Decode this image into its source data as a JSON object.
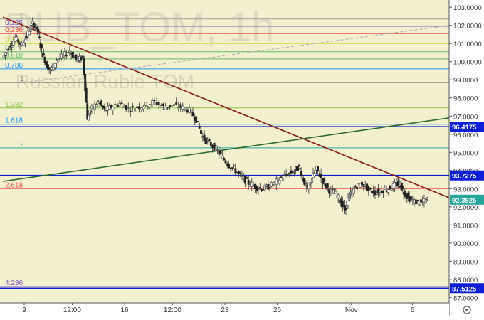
{
  "watermark": {
    "symbol": "RUB_TOM, 1h",
    "name": "Russian Ruble TOM"
  },
  "chart_data": {
    "type": "candlestick",
    "symbol": "RUB_TOM",
    "timeframe": "1h",
    "ylim": [
      86.7,
      103.4
    ],
    "y_ticks": [
      "103.0000",
      "102.0000",
      "101.0000",
      "100.0000",
      "99.0000",
      "98.0000",
      "97.0000",
      "96.0000",
      "95.0000",
      "94.0000",
      "93.0000",
      "92.0000",
      "91.0000",
      "90.0000",
      "89.0000",
      "88.0000",
      "87.0000"
    ],
    "x_labels": [
      {
        "label": "9",
        "x": 0.0
      },
      {
        "label": "12:00",
        "x": 0.11
      },
      {
        "label": "16",
        "x": 0.23
      },
      {
        "label": "12:00",
        "x": 0.34
      },
      {
        "label": "23",
        "x": 0.46
      },
      {
        "label": "26",
        "x": 0.58
      },
      {
        "label": "Nov",
        "x": 0.75
      },
      {
        "label": "6",
        "x": 0.89
      }
    ],
    "fib_levels": [
      {
        "label": "0",
        "value": 102.35,
        "color": "#9e9e9e"
      },
      {
        "label": "0.125",
        "value": 101.95,
        "color": "#7e57c2"
      },
      {
        "label": "0.236",
        "value": 101.55,
        "color": "#ef5350"
      },
      {
        "label": "0.382",
        "value": 101.0,
        "color": "#cddc39"
      },
      {
        "label": "0.5",
        "value": 100.55,
        "color": "#66bb6a"
      },
      {
        "label": "0.618",
        "value": 100.15,
        "color": "#66bb6a"
      },
      {
        "label": "0.786",
        "value": 99.6,
        "color": "#2196f3"
      },
      {
        "label": "1",
        "value": 98.85,
        "color": "#787878"
      },
      {
        "label": "1.382",
        "value": 97.45,
        "color": "#8bc34a"
      },
      {
        "label": "1.618",
        "value": 96.55,
        "color": "#2196f3"
      },
      {
        "label": "2",
        "value": 95.25,
        "color": "#26a69a"
      },
      {
        "label": "2.618",
        "value": 93.0,
        "color": "#ef5350"
      },
      {
        "label": "4.236",
        "value": 87.6,
        "color": "#7e57c2"
      }
    ],
    "price_levels": [
      {
        "value": 96.4175,
        "label": "96.4175",
        "color": "#0d1fd6"
      },
      {
        "value": 93.7275,
        "label": "93.7275",
        "color": "#0d1fd6"
      },
      {
        "value": 87.5125,
        "label": "87.5125",
        "color": "#0d1fd6"
      }
    ],
    "current_price": {
      "value": 92.3925,
      "label": "92.3925",
      "color": "#26a69a"
    },
    "trendlines": [
      {
        "name": "resistance",
        "color": "#8b1a1a",
        "from": {
          "x": 0.0,
          "y": 102.45
        },
        "to": {
          "x": 1.0,
          "y": 92.5
        }
      },
      {
        "name": "support",
        "color": "#2e6b2e",
        "from": {
          "x": 0.0,
          "y": 93.4
        },
        "to": {
          "x": 1.0,
          "y": 96.9
        }
      },
      {
        "name": "projection",
        "color": "#aaaaaa",
        "dashed": true,
        "from": {
          "x": 0.05,
          "y": 98.85
        },
        "to": {
          "x": 1.0,
          "y": 102.0
        }
      }
    ],
    "price_path": [
      [
        0.0,
        100.2
      ],
      [
        0.015,
        100.8
      ],
      [
        0.03,
        101.3
      ],
      [
        0.045,
        100.9
      ],
      [
        0.055,
        101.4
      ],
      [
        0.07,
        102.1
      ],
      [
        0.08,
        101.8
      ],
      [
        0.09,
        100.6
      ],
      [
        0.1,
        99.9
      ],
      [
        0.11,
        99.5
      ],
      [
        0.125,
        100.1
      ],
      [
        0.14,
        100.3
      ],
      [
        0.155,
        100.6
      ],
      [
        0.17,
        100.1
      ],
      [
        0.185,
        100.2
      ],
      [
        0.195,
        96.9
      ],
      [
        0.205,
        97.4
      ],
      [
        0.22,
        97.8
      ],
      [
        0.235,
        97.3
      ],
      [
        0.25,
        97.5
      ],
      [
        0.27,
        97.7
      ],
      [
        0.29,
        97.4
      ],
      [
        0.31,
        97.5
      ],
      [
        0.33,
        97.6
      ],
      [
        0.35,
        97.8
      ],
      [
        0.37,
        97.5
      ],
      [
        0.39,
        97.6
      ],
      [
        0.41,
        97.5
      ],
      [
        0.43,
        97.3
      ],
      [
        0.445,
        96.8
      ],
      [
        0.46,
        95.8
      ],
      [
        0.475,
        95.5
      ],
      [
        0.49,
        95.2
      ],
      [
        0.505,
        94.7
      ],
      [
        0.52,
        94.3
      ],
      [
        0.535,
        94.0
      ],
      [
        0.55,
        93.6
      ],
      [
        0.565,
        93.3
      ],
      [
        0.58,
        93.1
      ],
      [
        0.595,
        93.0
      ],
      [
        0.61,
        93.1
      ],
      [
        0.625,
        93.3
      ],
      [
        0.64,
        93.6
      ],
      [
        0.655,
        93.8
      ],
      [
        0.67,
        94.0
      ],
      [
        0.68,
        94.2
      ],
      [
        0.69,
        93.5
      ],
      [
        0.7,
        92.9
      ],
      [
        0.71,
        93.6
      ],
      [
        0.72,
        94.1
      ],
      [
        0.735,
        93.4
      ],
      [
        0.75,
        92.9
      ],
      [
        0.765,
        92.7
      ],
      [
        0.775,
        92.3
      ],
      [
        0.785,
        91.8
      ],
      [
        0.795,
        92.6
      ],
      [
        0.81,
        93.1
      ],
      [
        0.825,
        93.3
      ],
      [
        0.84,
        92.9
      ],
      [
        0.855,
        92.8
      ],
      [
        0.87,
        92.9
      ],
      [
        0.885,
        93.0
      ],
      [
        0.9,
        93.2
      ],
      [
        0.91,
        93.3
      ],
      [
        0.92,
        92.8
      ],
      [
        0.93,
        92.5
      ],
      [
        0.945,
        92.3
      ],
      [
        0.96,
        92.2
      ],
      [
        0.975,
        92.4
      ]
    ]
  }
}
